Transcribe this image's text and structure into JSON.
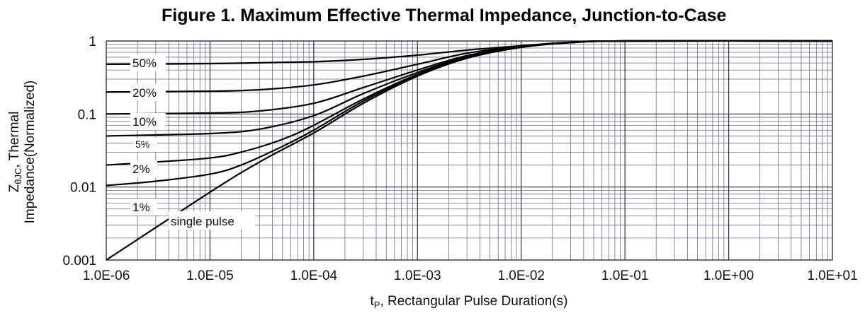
{
  "chart_data": {
    "type": "line",
    "title": "Figure 1. Maximum Effective Thermal Impedance, Junction-to-Case",
    "xlabel": "tP, Rectangular Pulse Duration(s)",
    "xlabel_parts": {
      "base": "t",
      "sub": "P",
      "rest": ", Rectangular Pulse Duration(s)"
    },
    "ylabel_lines": [
      "ZθJC, Thermal",
      "Impedance(Normalized)"
    ],
    "ylabel_parts": {
      "base": "Z",
      "sub": "θJC",
      "rest": ", Thermal"
    },
    "x_scale": "log",
    "y_scale": "log",
    "xlim": [
      1e-06,
      10
    ],
    "ylim": [
      0.001,
      1
    ],
    "x_tick_values": [
      1e-06,
      1e-05,
      0.0001,
      0.001,
      0.01,
      0.1,
      1,
      10
    ],
    "x_tick_labels": [
      "1.0E-06",
      "1.0E-05",
      "1.0E-04",
      "1.0E-03",
      "1.0E-02",
      "1.0E-01",
      "1.0E+00",
      "1.0E+01"
    ],
    "y_tick_values": [
      0.001,
      0.01,
      0.1,
      1
    ],
    "y_tick_labels": [
      "0.001",
      "0.01",
      "0.1",
      "1"
    ],
    "grid": true,
    "series": [
      {
        "name": "50%",
        "x": [
          1e-06,
          1e-05,
          0.0001,
          0.0003,
          0.001,
          0.003,
          0.01,
          0.03,
          0.1,
          10
        ],
        "y": [
          0.48,
          0.49,
          0.52,
          0.56,
          0.64,
          0.75,
          0.86,
          0.96,
          1.0,
          1.0
        ]
      },
      {
        "name": "20%",
        "x": [
          1e-06,
          1e-05,
          3e-05,
          0.0001,
          0.0003,
          0.001,
          0.003,
          0.01,
          0.03,
          0.1,
          10
        ],
        "y": [
          0.2,
          0.205,
          0.215,
          0.25,
          0.33,
          0.48,
          0.68,
          0.85,
          0.96,
          1.0,
          1.0
        ]
      },
      {
        "name": "10%",
        "x": [
          1e-06,
          1e-05,
          3e-05,
          0.0001,
          0.0003,
          0.001,
          0.003,
          0.01,
          0.03,
          0.1,
          10
        ],
        "y": [
          0.1,
          0.103,
          0.11,
          0.14,
          0.23,
          0.4,
          0.63,
          0.84,
          0.96,
          1.0,
          1.0
        ]
      },
      {
        "name": "5%",
        "x": [
          1e-06,
          1e-05,
          3e-05,
          0.0001,
          0.0003,
          0.001,
          0.003,
          0.01,
          0.03,
          0.1,
          10
        ],
        "y": [
          0.05,
          0.054,
          0.062,
          0.095,
          0.19,
          0.37,
          0.61,
          0.83,
          0.95,
          1.0,
          1.0
        ]
      },
      {
        "name": "2%",
        "x": [
          1e-06,
          3e-06,
          1e-05,
          2e-05,
          5e-05,
          0.0001,
          0.0003,
          0.001,
          0.003,
          0.01,
          0.03,
          0.1,
          10
        ],
        "y": [
          0.02,
          0.022,
          0.025,
          0.03,
          0.045,
          0.07,
          0.16,
          0.35,
          0.6,
          0.83,
          0.95,
          1.0,
          1.0
        ]
      },
      {
        "name": "1%",
        "x": [
          1e-06,
          3e-06,
          1e-05,
          2e-05,
          5e-05,
          0.0001,
          0.0003,
          0.001,
          0.003,
          0.01,
          0.03,
          0.1,
          10
        ],
        "y": [
          0.0105,
          0.012,
          0.015,
          0.02,
          0.036,
          0.06,
          0.15,
          0.34,
          0.59,
          0.82,
          0.95,
          1.0,
          1.0
        ]
      },
      {
        "name": "single pulse",
        "x": [
          1e-06,
          1e-05,
          3e-05,
          0.0001,
          0.0003,
          0.001,
          0.003,
          0.01,
          0.03,
          0.1,
          10
        ],
        "y": [
          0.001,
          0.0085,
          0.022,
          0.055,
          0.14,
          0.33,
          0.58,
          0.82,
          0.95,
          1.0,
          1.0
        ]
      }
    ]
  }
}
